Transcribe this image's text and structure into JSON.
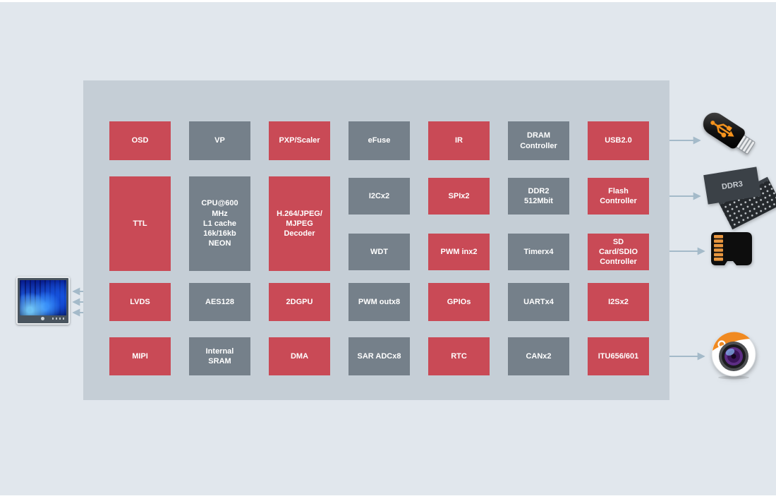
{
  "colors": {
    "page_bg": "#e1e7ed",
    "chip_bg": "#c5ced6",
    "block_red": "#c94a56",
    "block_gray": "#75808a",
    "arrow": "#a4bac9",
    "block_text": "#ffffff"
  },
  "chip": {
    "blocks": [
      {
        "id": "osd",
        "label": "OSD",
        "color": "red",
        "col": 1,
        "row": "1"
      },
      {
        "id": "vp",
        "label": "VP",
        "color": "gray",
        "col": 2,
        "row": "1"
      },
      {
        "id": "pxp-scaler",
        "label": "PXP/Scaler",
        "color": "red",
        "col": 3,
        "row": "1"
      },
      {
        "id": "efuse",
        "label": "eFuse",
        "color": "gray",
        "col": 4,
        "row": "1"
      },
      {
        "id": "ir",
        "label": "IR",
        "color": "red",
        "col": 5,
        "row": "1"
      },
      {
        "id": "dram-controller",
        "label": "DRAM\nController",
        "color": "gray",
        "col": 6,
        "row": "1"
      },
      {
        "id": "usb2",
        "label": "USB2.0",
        "color": "red",
        "col": 7,
        "row": "1"
      },
      {
        "id": "ttl",
        "label": "TTL",
        "color": "red",
        "col": 1,
        "row": "t"
      },
      {
        "id": "cpu",
        "label": "CPU@600\nMHz\nL1 cache\n16k/16kb\nNEON",
        "color": "gray",
        "col": 2,
        "row": "t"
      },
      {
        "id": "h264-decoder",
        "label": "H.264/JPEG/\nMJPEG\nDecoder",
        "color": "red",
        "col": 3,
        "row": "t"
      },
      {
        "id": "i2c",
        "label": "I2Cx2",
        "color": "gray",
        "col": 4,
        "row": "2a"
      },
      {
        "id": "spi",
        "label": "SPIx2",
        "color": "red",
        "col": 5,
        "row": "2a"
      },
      {
        "id": "ddr2",
        "label": "DDR2\n512Mbit",
        "color": "gray",
        "col": 6,
        "row": "2a"
      },
      {
        "id": "flash-controller",
        "label": "Flash\nController",
        "color": "red",
        "col": 7,
        "row": "2a"
      },
      {
        "id": "wdt",
        "label": "WDT",
        "color": "gray",
        "col": 4,
        "row": "2b"
      },
      {
        "id": "pwm-in",
        "label": "PWM inx2",
        "color": "red",
        "col": 5,
        "row": "2b"
      },
      {
        "id": "timer",
        "label": "Timerx4",
        "color": "gray",
        "col": 6,
        "row": "2b"
      },
      {
        "id": "sd-controller",
        "label": "SD\nCard/SDIO\nController",
        "color": "red",
        "col": 7,
        "row": "2b"
      },
      {
        "id": "lvds",
        "label": "LVDS",
        "color": "red",
        "col": 1,
        "row": "3"
      },
      {
        "id": "aes128",
        "label": "AES128",
        "color": "gray",
        "col": 2,
        "row": "3"
      },
      {
        "id": "2dgpu",
        "label": "2DGPU",
        "color": "red",
        "col": 3,
        "row": "3"
      },
      {
        "id": "pwm-out",
        "label": "PWM outx8",
        "color": "gray",
        "col": 4,
        "row": "3"
      },
      {
        "id": "gpios",
        "label": "GPIOs",
        "color": "red",
        "col": 5,
        "row": "3"
      },
      {
        "id": "uart",
        "label": "UARTx4",
        "color": "gray",
        "col": 6,
        "row": "3"
      },
      {
        "id": "i2s",
        "label": "I2Sx2",
        "color": "red",
        "col": 7,
        "row": "3"
      },
      {
        "id": "mipi",
        "label": "MIPI",
        "color": "red",
        "col": 1,
        "row": "4"
      },
      {
        "id": "internal-sram",
        "label": "Internal\nSRAM",
        "color": "gray",
        "col": 2,
        "row": "4"
      },
      {
        "id": "dma",
        "label": "DMA",
        "color": "red",
        "col": 3,
        "row": "4"
      },
      {
        "id": "sar-adc",
        "label": "SAR ADCx8",
        "color": "gray",
        "col": 4,
        "row": "4"
      },
      {
        "id": "rtc",
        "label": "RTC",
        "color": "red",
        "col": 5,
        "row": "4"
      },
      {
        "id": "canx2",
        "label": "CANx2",
        "color": "gray",
        "col": 6,
        "row": "4"
      },
      {
        "id": "itu656",
        "label": "ITU656/601",
        "color": "red",
        "col": 7,
        "row": "4"
      }
    ]
  },
  "devices": {
    "monitor": {
      "icon": "display-icon"
    },
    "usb": {
      "icon": "usb-flash-drive-icon"
    },
    "ddr3": {
      "icon": "ddr3-memory-icon",
      "label": "DDR3"
    },
    "sdcard": {
      "icon": "micro-sd-card-icon"
    },
    "camera": {
      "icon": "camera-icon"
    }
  },
  "connections": {
    "left": [
      {
        "from": "ttl",
        "to": "display"
      },
      {
        "from": "lvds",
        "to": "display"
      },
      {
        "from": "mipi",
        "to": "display"
      }
    ],
    "right": [
      {
        "from": "usb2",
        "to": "usb-flash-drive"
      },
      {
        "from": "flash-controller",
        "to": "ddr3-memory"
      },
      {
        "from": "sd-controller",
        "to": "micro-sd-card"
      },
      {
        "from": "itu656",
        "to": "camera"
      }
    ]
  }
}
